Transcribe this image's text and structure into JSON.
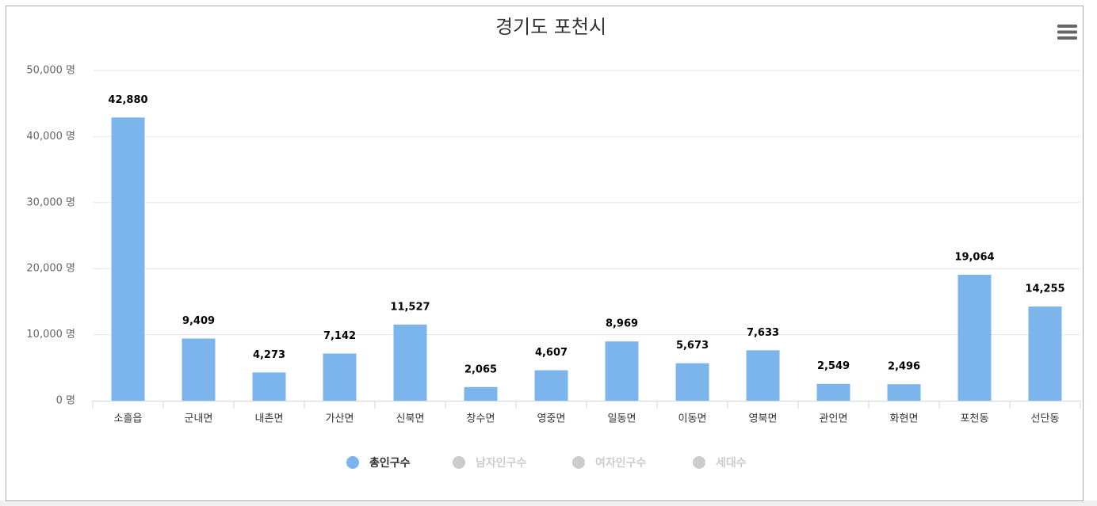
{
  "chart_data": {
    "type": "bar",
    "title": "경기도 포천시",
    "categories": [
      "소흘읍",
      "군내면",
      "내촌면",
      "가산면",
      "신북면",
      "창수면",
      "영중면",
      "일동면",
      "이동면",
      "영북면",
      "관인면",
      "화현면",
      "포천동",
      "선단동"
    ],
    "series": [
      {
        "name": "총인구수",
        "color": "#7cb5ec",
        "visible": true,
        "values": [
          42880,
          9409,
          4273,
          7142,
          11527,
          2065,
          4607,
          8969,
          5673,
          7633,
          2549,
          2496,
          19064,
          14255
        ],
        "value_labels": [
          "42,880",
          "9,409",
          "4,273",
          "7,142",
          "11,527",
          "2,065",
          "4,607",
          "8,969",
          "5,673",
          "7,633",
          "2,549",
          "2,496",
          "19,064",
          "14,255"
        ]
      },
      {
        "name": "남자인구수",
        "visible": false
      },
      {
        "name": "여자인구수",
        "visible": false
      },
      {
        "name": "세대수",
        "visible": false
      }
    ],
    "legend_hidden_color": "#cccccc",
    "ylim": [
      0,
      50000
    ],
    "yticks": [
      {
        "value": 0,
        "label": "0 명"
      },
      {
        "value": 10000,
        "label": "10,000 명"
      },
      {
        "value": 20000,
        "label": "20,000 명"
      },
      {
        "value": 30000,
        "label": "30,000 명"
      },
      {
        "value": 40000,
        "label": "40,000 명"
      },
      {
        "value": 50000,
        "label": "50,000 명"
      }
    ],
    "grid": true
  }
}
